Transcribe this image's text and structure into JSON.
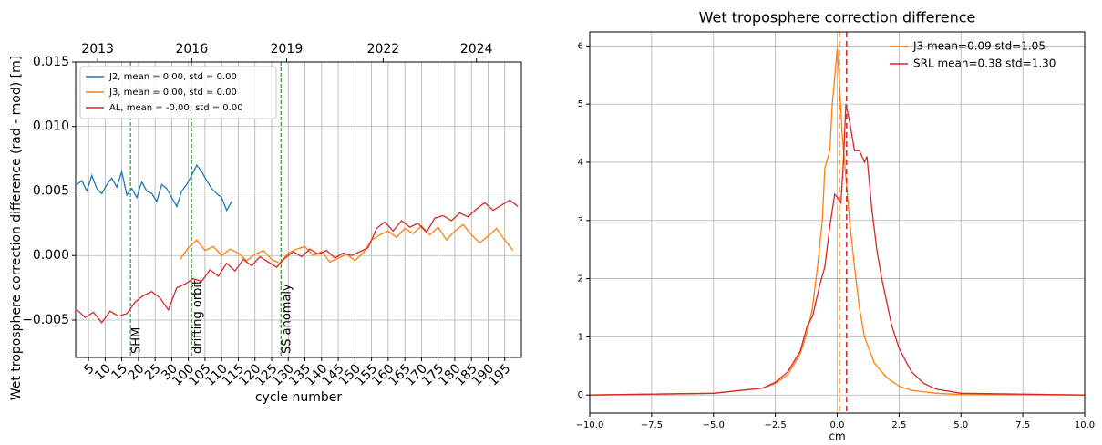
{
  "chart_data": [
    {
      "type": "line",
      "xlabel": "cycle number",
      "ylabel": "Wet troposphere correction  difference (rad - mod) [m]",
      "xlim": [
        -0.77,
        26.0
      ],
      "ylim": [
        -0.0079,
        0.015
      ],
      "xticks": [
        {
          "value": 0,
          "label": "5"
        },
        {
          "value": 1,
          "label": "10"
        },
        {
          "value": 2,
          "label": "15"
        },
        {
          "value": 3,
          "label": "20"
        },
        {
          "value": 4,
          "label": "25"
        },
        {
          "value": 5,
          "label": "30"
        },
        {
          "value": 6,
          "label": "100"
        },
        {
          "value": 7,
          "label": "105"
        },
        {
          "value": 8,
          "label": "110"
        },
        {
          "value": 9,
          "label": "115"
        },
        {
          "value": 10,
          "label": "120"
        },
        {
          "value": 11,
          "label": "125"
        },
        {
          "value": 12,
          "label": "130"
        },
        {
          "value": 13,
          "label": "135"
        },
        {
          "value": 14,
          "label": "140"
        },
        {
          "value": 15,
          "label": "145"
        },
        {
          "value": 16,
          "label": "150"
        },
        {
          "value": 17,
          "label": "155"
        },
        {
          "value": 18,
          "label": "160"
        },
        {
          "value": 19,
          "label": "165"
        },
        {
          "value": 20,
          "label": "170"
        },
        {
          "value": 21,
          "label": "175"
        },
        {
          "value": 22,
          "label": "180"
        },
        {
          "value": 23,
          "label": "185"
        },
        {
          "value": 24,
          "label": "190"
        },
        {
          "value": 25,
          "label": "195"
        }
      ],
      "xtick_rotation": 45,
      "xticks_top": [
        {
          "value": 0.55,
          "label": "2013"
        },
        {
          "value": 6.2,
          "label": "2016"
        },
        {
          "value": 11.9,
          "label": "2019"
        },
        {
          "value": 17.7,
          "label": "2022"
        },
        {
          "value": 23.3,
          "label": "2024"
        }
      ],
      "yticks": [
        {
          "value": -0.005,
          "label": "−0.005"
        },
        {
          "value": 0,
          "label": "0.000"
        },
        0.005,
        {
          "value": 0.01,
          "label": "0.010"
        },
        0.015
      ],
      "grid": true,
      "legend": "upper left",
      "annotations": [
        {
          "x": 2.52,
          "text": "SHM",
          "color": "#008000"
        },
        {
          "x": 6.19,
          "text": "drifting orbit",
          "color": "#008000"
        },
        {
          "x": 11.56,
          "text": "SS anomaly",
          "color": "#008000"
        }
      ],
      "series": [
        {
          "name": "J2, mean = 0.00, std = 0.00",
          "color": "#1f77b4",
          "x": [
            -0.7,
            -0.4,
            -0.1,
            0.2,
            0.5,
            0.8,
            1.1,
            1.4,
            1.7,
            2.0,
            2.3,
            2.6,
            2.9,
            3.2,
            3.5,
            3.8,
            4.1,
            4.4,
            4.7,
            5.0,
            5.3,
            5.6,
            5.9,
            6.2,
            6.5,
            6.8,
            7.1,
            7.4,
            7.7,
            8.0,
            8.3,
            8.6
          ],
          "values": [
            0.0055,
            0.0058,
            0.005,
            0.0062,
            0.0052,
            0.0048,
            0.0055,
            0.006,
            0.0053,
            0.0065,
            0.0047,
            0.0052,
            0.0045,
            0.0057,
            0.005,
            0.0048,
            0.0042,
            0.0055,
            0.0052,
            0.0045,
            0.0038,
            0.005,
            0.0055,
            0.0062,
            0.007,
            0.0065,
            0.0058,
            0.0052,
            0.0048,
            0.0045,
            0.0035,
            0.0042
          ]
        },
        {
          "name": "J3, mean = 0.00, std = 0.00",
          "color": "#ff7f0e",
          "x": [
            5.5,
            6.0,
            6.5,
            7.0,
            7.5,
            8.0,
            8.5,
            9.0,
            9.5,
            10.0,
            10.5,
            11.0,
            11.5,
            12.0,
            12.5,
            13.0,
            13.5,
            14.0,
            14.5,
            15.0,
            15.5,
            16.0,
            16.5,
            17.0,
            17.5,
            18.0,
            18.5,
            19.0,
            19.5,
            20.0,
            20.5,
            21.0,
            21.5,
            22.0,
            22.5,
            23.0,
            23.5,
            24.0,
            24.5,
            25.0,
            25.5
          ],
          "values": [
            -0.0003,
            0.0006,
            0.0012,
            0.0004,
            0.0007,
            0.0,
            0.0005,
            0.0002,
            -0.0004,
            0.0001,
            0.0004,
            -0.0003,
            -0.0006,
            0.0002,
            0.0005,
            0.0007,
            0.0,
            0.0003,
            -0.0005,
            -0.0002,
            0.0001,
            -0.0004,
            0.0002,
            0.0012,
            0.0016,
            0.0019,
            0.0014,
            0.0021,
            0.0017,
            0.0023,
            0.0016,
            0.0022,
            0.0012,
            0.0019,
            0.0024,
            0.0016,
            0.001,
            0.0015,
            0.0021,
            0.0012,
            0.0004
          ]
        },
        {
          "name": "AL, mean = -0.00, std = 0.00",
          "color": "#d62728",
          "x": [
            -0.7,
            -0.2,
            0.3,
            0.8,
            1.3,
            1.8,
            2.3,
            2.8,
            3.3,
            3.8,
            4.3,
            4.8,
            5.3,
            5.8,
            6.3,
            6.8,
            7.3,
            7.8,
            8.3,
            8.8,
            9.3,
            9.8,
            10.3,
            10.8,
            11.3,
            11.8,
            12.3,
            12.8,
            13.3,
            13.8,
            14.3,
            14.8,
            15.3,
            15.8,
            16.3,
            16.8,
            17.3,
            17.8,
            18.3,
            18.8,
            19.3,
            19.8,
            20.3,
            20.8,
            21.3,
            21.8,
            22.3,
            22.8,
            23.3,
            23.8,
            24.3,
            24.8,
            25.3,
            25.8
          ],
          "values": [
            -0.0042,
            -0.0048,
            -0.0044,
            -0.0052,
            -0.0043,
            -0.0047,
            -0.0045,
            -0.0036,
            -0.0031,
            -0.0028,
            -0.0033,
            -0.0042,
            -0.0025,
            -0.0022,
            -0.0018,
            -0.002,
            -0.0011,
            -0.0016,
            -0.0006,
            -0.0012,
            -0.0003,
            -0.0008,
            -0.0001,
            -0.0005,
            -0.0009,
            -0.0002,
            0.0003,
            -0.0001,
            0.0005,
            0.0001,
            0.0004,
            -0.0002,
            0.0002,
            0.0,
            0.0003,
            0.0006,
            0.0021,
            0.0026,
            0.0019,
            0.0027,
            0.0022,
            0.0025,
            0.0018,
            0.0029,
            0.0031,
            0.0027,
            0.0033,
            0.003,
            0.0036,
            0.0041,
            0.0035,
            0.0039,
            0.0043,
            0.0038
          ]
        }
      ]
    },
    {
      "type": "line",
      "title": "Wet troposphere correction difference",
      "xlabel": "cm",
      "xlim": [
        -10,
        10
      ],
      "ylim": [
        -0.31,
        6.24
      ],
      "xticks": [
        {
          "value": -10,
          "label": "−10.0"
        },
        {
          "value": -7.5,
          "label": "−7.5"
        },
        {
          "value": -5,
          "label": "−5.0"
        },
        {
          "value": -2.5,
          "label": "−2.5"
        },
        {
          "value": 0,
          "label": "0.0"
        },
        {
          "value": 2.5,
          "label": "2.5"
        },
        {
          "value": 5,
          "label": "5.0"
        },
        {
          "value": 7.5,
          "label": "7.5"
        },
        {
          "value": 10,
          "label": "10.0"
        }
      ],
      "yticks": [
        0,
        1,
        2,
        3,
        4,
        5,
        6
      ],
      "grid": true,
      "legend": "upper right",
      "series": [
        {
          "name": "J3  mean=0.09 std=1.05",
          "color": "#ff7f0e",
          "mean": 0.09,
          "x": [
            -10,
            -5,
            -3,
            -2.5,
            -2,
            -1.5,
            -1.2,
            -1,
            -0.8,
            -0.6,
            -0.5,
            -0.3,
            -0.2,
            0,
            0.1,
            0.2,
            0.3,
            0.5,
            0.7,
            0.9,
            1.1,
            1.5,
            2,
            2.5,
            3,
            4,
            5,
            10
          ],
          "values": [
            0,
            0.03,
            0.12,
            0.2,
            0.35,
            0.7,
            1.1,
            1.5,
            2.2,
            3.0,
            3.9,
            4.2,
            5.0,
            5.95,
            5.3,
            4.5,
            4.0,
            3.0,
            2.2,
            1.5,
            1.0,
            0.55,
            0.3,
            0.15,
            0.08,
            0.03,
            0.01,
            0
          ]
        },
        {
          "name": "SRL mean=0.38 std=1.30",
          "color": "#d62728",
          "mean": 0.38,
          "x": [
            -10,
            -5,
            -3,
            -2.5,
            -2,
            -1.5,
            -1.2,
            -1,
            -0.7,
            -0.5,
            -0.3,
            -0.1,
            0,
            0.15,
            0.25,
            0.35,
            0.5,
            0.7,
            0.9,
            1.1,
            1.2,
            1.4,
            1.6,
            1.8,
            2,
            2.2,
            2.5,
            3,
            3.5,
            4,
            5,
            10
          ],
          "values": [
            0,
            0.03,
            0.12,
            0.22,
            0.4,
            0.75,
            1.2,
            1.35,
            1.9,
            2.2,
            2.9,
            3.45,
            3.4,
            3.3,
            4.0,
            5.0,
            4.7,
            4.2,
            4.2,
            4.0,
            4.1,
            3.2,
            2.5,
            2.0,
            1.6,
            1.2,
            0.8,
            0.4,
            0.2,
            0.1,
            0.03,
            0
          ]
        }
      ]
    }
  ]
}
